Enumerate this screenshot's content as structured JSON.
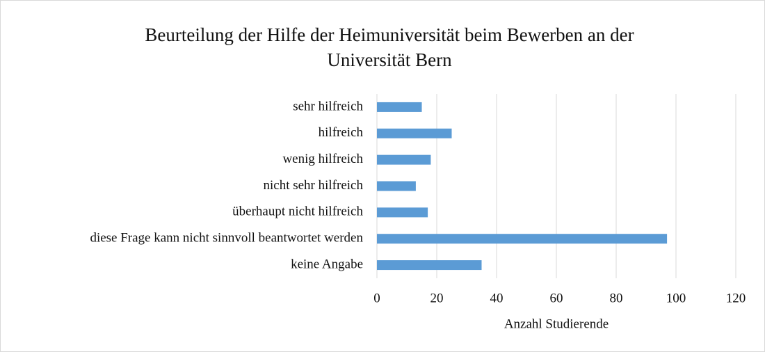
{
  "chart_data": {
    "type": "barh",
    "title": "Beurteilung der Hilfe der Heimuniversität beim Bewerben an der Universität Bern",
    "x_label": "Anzahl Studierende",
    "categories": [
      "sehr hilfreich",
      "hilfreich",
      "wenig hilfreich",
      "nicht sehr hilfreich",
      "überhaupt nicht hilfreich",
      "diese Frage kann nicht sinnvoll beantwortet werden",
      "keine Angabe"
    ],
    "values": [
      15,
      25,
      18,
      13,
      17,
      97,
      35
    ],
    "color": "#5b9bd5",
    "xlim": [
      0,
      120
    ],
    "xticks": [
      0,
      20,
      40,
      60,
      80,
      100,
      120
    ],
    "grid": true
  }
}
